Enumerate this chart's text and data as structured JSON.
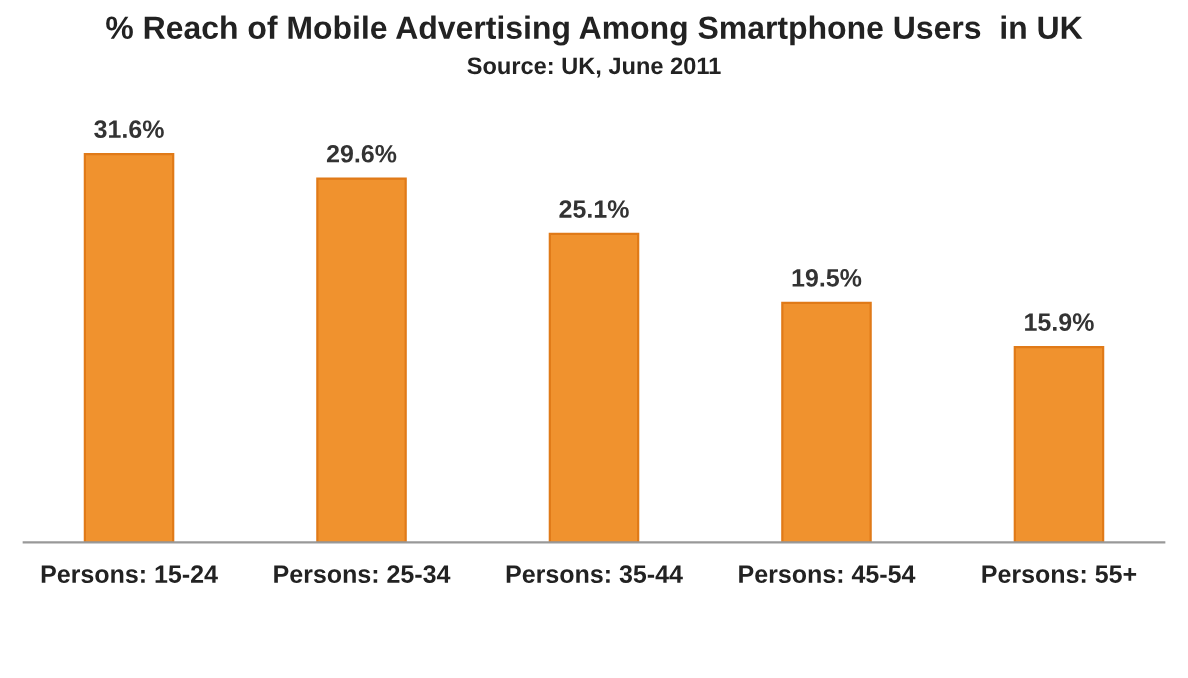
{
  "chart_data": {
    "type": "bar",
    "title": "% Reach of Mobile Advertising Among Smartphone Users  in UK",
    "subtitle": "Source: UK, June 2011",
    "categories": [
      "Persons: 15-24",
      "Persons: 25-34",
      "Persons: 35-44",
      "Persons: 45-54",
      "Persons: 55+"
    ],
    "values": [
      31.6,
      29.6,
      25.1,
      19.5,
      15.9
    ],
    "value_labels": [
      "31.6%",
      "29.6%",
      "25.1%",
      "19.5%",
      "15.9%"
    ],
    "color": "#f0922e",
    "grid": false,
    "legend": false
  }
}
